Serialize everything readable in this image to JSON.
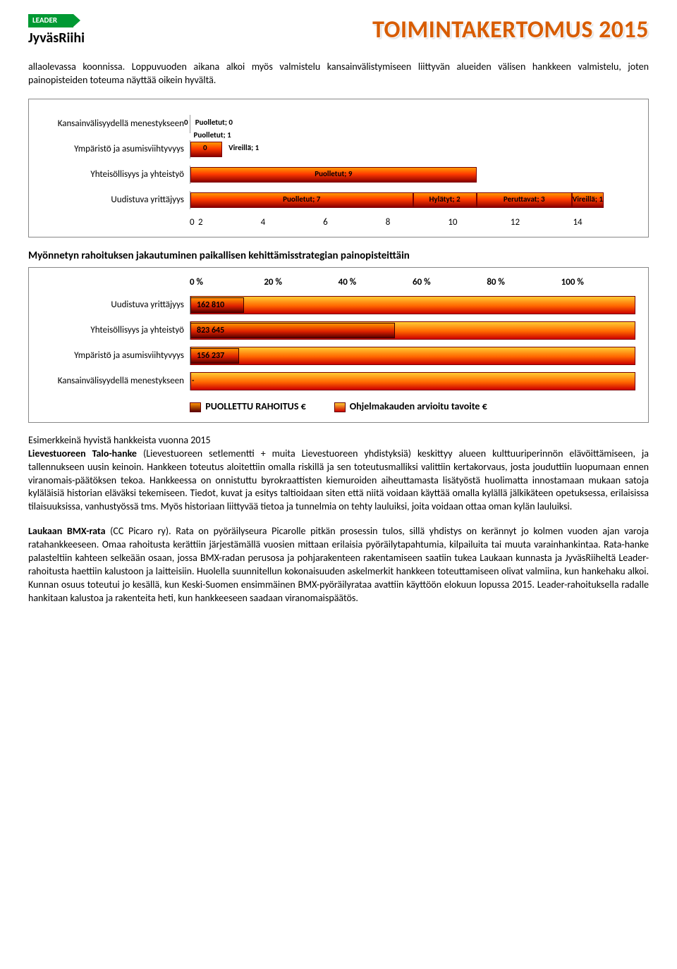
{
  "header": {
    "flag": "LEADER",
    "brand": "JyväsRiihi",
    "title": "TOIMINTAKERTOMUS 2015"
  },
  "intro": "allaolevassa koonnissa. Loppuvuoden aikana alkoi myös valmistelu kansainvälistymiseen liittyvän alueiden välisen hankkeen valmistelu, joten painopisteiden toteuma näyttää oikein hyvältä.",
  "chart1": {
    "type": "bar",
    "x_max": 14,
    "x_ticks": [
      0,
      2,
      4,
      6,
      8,
      10,
      12,
      14
    ],
    "segment_colors": {
      "puolletut": "#d84a00",
      "hylatyt": "#d84a00",
      "peruttavat": "#d84a00",
      "vireilla": "#d84a00"
    },
    "rows": [
      {
        "label": "Kansainvälisyydellä menestykseen",
        "segments": [],
        "annotations": [
          {
            "text": "0",
            "left_units": -0.2
          },
          {
            "text": "Puolletut; 0",
            "left_units": 0.15
          }
        ]
      },
      {
        "label": "Ympäristö ja asumisviihtyvyys",
        "segments": [
          {
            "start": 0,
            "width": 1,
            "text": ""
          }
        ],
        "annotations": [
          {
            "text": "Puolletut; 1",
            "left_units": 0.1,
            "top": -14
          },
          {
            "text": "0",
            "left_units": 0.4
          },
          {
            "text": "Vireillä; 1",
            "left_units": 1.2
          }
        ]
      },
      {
        "label": "Yhteisöllisyys ja yhteistyö",
        "segments": [
          {
            "start": 0,
            "width": 9,
            "text": "Puolletut; 9"
          }
        ],
        "annotations": []
      },
      {
        "label": "Uudistuva yrittäjyys",
        "segments": [
          {
            "start": 0,
            "width": 7,
            "text": "Puolletut; 7"
          },
          {
            "start": 7,
            "width": 2,
            "text": "Hylätyt; 2"
          },
          {
            "start": 9,
            "width": 3,
            "text": "Peruttavat; 3"
          },
          {
            "start": 12,
            "width": 1,
            "text": "Vireillä; 1"
          }
        ],
        "annotations": []
      }
    ]
  },
  "chart2": {
    "type": "bar",
    "heading": "Myönnetyn rahoituksen jakautuminen paikallisen kehittämisstrategian painopisteittäin",
    "pct_ticks": [
      "0 %",
      "20 %",
      "40 %",
      "60 %",
      "80 %",
      "100 %"
    ],
    "background_color": "#ffffff",
    "rows": [
      {
        "label": "Uudistuva yrittäjyys",
        "value_label": "162 810",
        "fg_pct": 12,
        "bg_pct": 100
      },
      {
        "label": "Yhteisöllisyys ja yhteistyö",
        "value_label": "823 645",
        "fg_pct": 46,
        "bg_pct": 100
      },
      {
        "label": "Ympäristö ja asumisviihtyvyys",
        "value_label": "156 237",
        "fg_pct": 11,
        "bg_pct": 100
      },
      {
        "label": "Kansainvälisyydellä menestykseen",
        "value_label": "-",
        "fg_pct": 0,
        "bg_pct": 100
      }
    ],
    "legend": {
      "a": "PUOLLETTU RAHOITUS €",
      "b": "Ohjelmakauden arvioitu tavoite €"
    }
  },
  "body": {
    "examples_heading": "Esimerkkeinä hyvistä hankkeista vuonna 2015",
    "p1_bold": "Lievestuoreen Talo-hanke",
    "p1": " (Lievestuoreen setlementti + muita Lievestuoreen yhdistyksiä) keskittyy alueen kulttuuriperinnön elävöittämiseen, ja tallennukseen uusin keinoin. Hankkeen toteutus aloitettiin omalla riskillä ja sen toteutusmalliksi valittiin kertakorvaus, josta jouduttiin luopumaan ennen viranomais-päätöksen tekoa. Hankkeessa on onnistuttu byrokraattisten kiemuroiden aiheuttamasta lisätyöstä huolimatta innostamaan mukaan satoja kyläläisiä historian eläväksi tekemiseen. Tiedot, kuvat ja esitys taltioidaan siten että niitä voidaan käyttää omalla kylällä jälkikäteen opetuksessa, erilaisissa tilaisuuksissa, vanhustyössä tms. Myös historiaan liittyvää tietoa ja tunnelmia on tehty lauluiksi, joita voidaan ottaa oman kylän lauluiksi.",
    "p2_bold": "Laukaan BMX-rata",
    "p2": " (CC Picaro ry). Rata on pyöräilyseura Picarolle pitkän prosessin tulos, sillä yhdistys on kerännyt jo kolmen vuoden ajan varoja ratahankkeeseen. Omaa rahoitusta kerättiin järjestämällä vuosien mittaan erilaisia pyöräilytapahtumia, kilpailuita tai muuta varainhankintaa. Rata-hanke palasteltiin kahteen selkeään osaan, jossa BMX-radan perusosa ja pohjarakenteen rakentamiseen saatiin tukea Laukaan kunnasta ja JyväsRiiheltä Leader-rahoitusta haettiin kalustoon ja laitteisiin. Huolella suunnitellun kokonaisuuden askelmerkit hankkeen toteuttamiseen olivat valmiina, kun hankehaku alkoi. Kunnan osuus toteutui jo kesällä, kun Keski-Suomen ensimmäinen BMX-pyöräilyrataa avattiin käyttöön elokuun lopussa 2015. Leader-rahoituksella radalle hankitaan kalustoa ja rakenteita heti, kun hankkeeseen saadaan viranomaispäätös."
  }
}
